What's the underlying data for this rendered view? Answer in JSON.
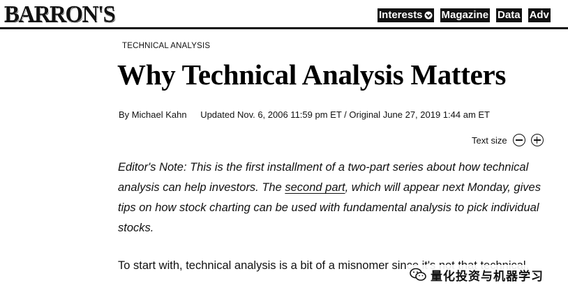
{
  "header": {
    "logo_text": "BARRON'S",
    "nav": [
      {
        "label": "Interests",
        "has_dropdown": true
      },
      {
        "label": "Magazine",
        "has_dropdown": false
      },
      {
        "label": "Data",
        "has_dropdown": false
      },
      {
        "label": "Adv",
        "has_dropdown": false
      }
    ]
  },
  "article": {
    "kicker": "TECHNICAL ANALYSIS",
    "headline": "Why Technical Analysis Matters",
    "byline": {
      "author": "By Michael Kahn",
      "dates": "Updated Nov. 6, 2006 11:59 pm ET / Original June 27, 2019 1:44 am ET"
    },
    "text_size": {
      "label": "Text size",
      "decrease_icon": "minus-circle-icon",
      "increase_icon": "plus-circle-icon"
    },
    "editors_note": {
      "before_link": "Editor's Note: This is the first installment of a two-part series about how technical analysis can help investors. The ",
      "link_text": "second part",
      "after_link": ", which will appear next Monday, gives tips on how stock charting can be used with fundamental analysis to pick individual stocks."
    },
    "paragraph_1": "To start with, technical analysis is a bit of a misnomer since it's not that technical."
  },
  "watermark": {
    "icon": "wechat-icon",
    "text": "量化投资与机器学习"
  }
}
